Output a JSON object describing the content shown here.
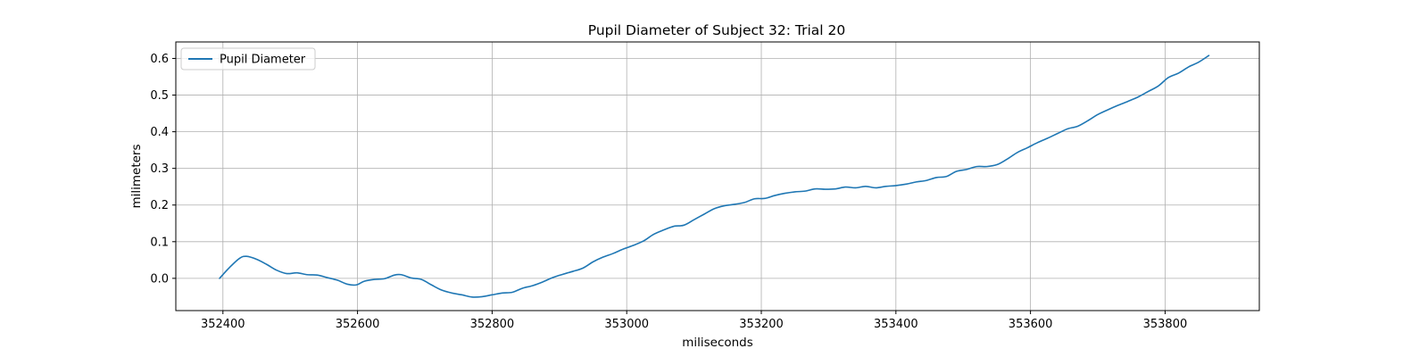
{
  "chart_data": {
    "type": "line",
    "title": "Pupil Diameter of Subject 32: Trial 20",
    "xlabel": "miliseconds",
    "ylabel": "milimeters",
    "xlim": [
      352330,
      353940
    ],
    "ylim": [
      -0.088,
      0.645
    ],
    "xticks": [
      352400,
      352600,
      352800,
      353000,
      353200,
      353400,
      353600,
      353800
    ],
    "xtick_labels": [
      "352400",
      "352600",
      "352800",
      "353000",
      "353200",
      "353400",
      "353600",
      "353800"
    ],
    "yticks": [
      0.0,
      0.1,
      0.2,
      0.3,
      0.4,
      0.5,
      0.6
    ],
    "ytick_labels": [
      "0.0",
      "0.1",
      "0.2",
      "0.3",
      "0.4",
      "0.5",
      "0.6"
    ],
    "grid": true,
    "legend_position": "upper-left",
    "series_color": "#1f77b4",
    "series": [
      {
        "name": "Pupil Diameter",
        "x": [
          352395,
          352410,
          352425,
          352435,
          352450,
          352465,
          352480,
          352495,
          352510,
          352525,
          352540,
          352555,
          352570,
          352585,
          352598,
          352610,
          352625,
          352640,
          352655,
          352665,
          352680,
          352695,
          352710,
          352725,
          352740,
          352755,
          352770,
          352785,
          352800,
          352815,
          352830,
          352845,
          352860,
          352875,
          352890,
          352905,
          352920,
          352935,
          352950,
          352965,
          352980,
          352995,
          353010,
          353025,
          353040,
          353055,
          353070,
          353085,
          353100,
          353115,
          353130,
          353145,
          353160,
          353175,
          353190,
          353205,
          353220,
          353235,
          353250,
          353265,
          353280,
          353295,
          353310,
          353325,
          353340,
          353355,
          353370,
          353385,
          353400,
          353415,
          353430,
          353445,
          353460,
          353475,
          353490,
          353505,
          353520,
          353535,
          353550,
          353565,
          353580,
          353595,
          353610,
          353625,
          353640,
          353655,
          353670,
          353685,
          353700,
          353715,
          353730,
          353745,
          353760,
          353775,
          353790,
          353805,
          353820,
          353835,
          353850,
          353865
        ],
        "y": [
          0.0,
          0.03,
          0.055,
          0.06,
          0.052,
          0.038,
          0.022,
          0.013,
          0.015,
          0.01,
          0.009,
          0.002,
          -0.005,
          -0.016,
          -0.018,
          -0.008,
          -0.003,
          -0.001,
          0.009,
          0.01,
          0.001,
          -0.003,
          -0.018,
          -0.032,
          -0.04,
          -0.045,
          -0.051,
          -0.05,
          -0.045,
          -0.04,
          -0.038,
          -0.027,
          -0.02,
          -0.01,
          0.002,
          0.011,
          0.019,
          0.028,
          0.045,
          0.058,
          0.068,
          0.08,
          0.09,
          0.102,
          0.12,
          0.132,
          0.142,
          0.145,
          0.16,
          0.175,
          0.19,
          0.198,
          0.202,
          0.207,
          0.217,
          0.218,
          0.226,
          0.232,
          0.236,
          0.238,
          0.244,
          0.243,
          0.244,
          0.249,
          0.247,
          0.251,
          0.247,
          0.251,
          0.253,
          0.257,
          0.263,
          0.267,
          0.275,
          0.278,
          0.292,
          0.297,
          0.305,
          0.305,
          0.31,
          0.325,
          0.343,
          0.356,
          0.37,
          0.382,
          0.395,
          0.408,
          0.415,
          0.43,
          0.447,
          0.46,
          0.472,
          0.483,
          0.495,
          0.51,
          0.525,
          0.548,
          0.56,
          0.577,
          0.59,
          0.608
        ]
      }
    ]
  }
}
